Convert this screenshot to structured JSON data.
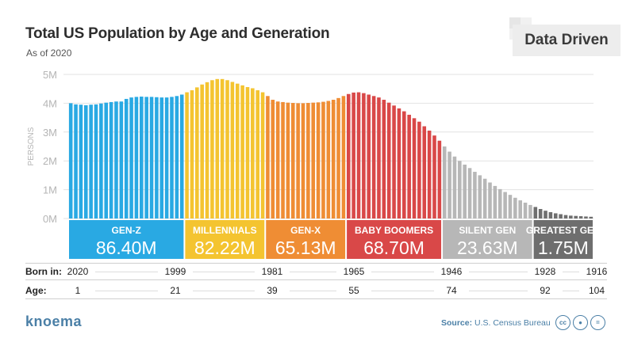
{
  "title": "Total US Population by Age and Generation",
  "subtitle": "As of 2020",
  "brand": "Data Driven",
  "footer": {
    "logo": "knoema",
    "source_label": "Source:",
    "source_value": "U.S. Census Bureau",
    "license_icons": [
      "cc-icon",
      "by-icon",
      "nd-icon"
    ]
  },
  "rows": {
    "born_label": "Born in:",
    "born_values": [
      "2020",
      "1999",
      "1981",
      "1965",
      "1946",
      "1928",
      "1916"
    ],
    "age_label": "Age:",
    "age_values": [
      "1",
      "21",
      "39",
      "55",
      "74",
      "92",
      "104"
    ]
  },
  "chart_data": {
    "type": "bar",
    "title": "Total US Population by Age and Generation",
    "subtitle": "As of 2020",
    "ylabel": "PERSONS",
    "xlabel": "Age",
    "ylim": [
      0,
      5
    ],
    "y_unit": "M",
    "yticks": [
      "0M",
      "1M",
      "2M",
      "3M",
      "4M",
      "5M"
    ],
    "ages_start": 1,
    "values": [
      4.0,
      3.96,
      3.95,
      3.93,
      3.95,
      3.96,
      3.99,
      4.02,
      4.04,
      4.06,
      4.06,
      4.15,
      4.2,
      4.22,
      4.23,
      4.22,
      4.22,
      4.21,
      4.2,
      4.2,
      4.22,
      4.25,
      4.3,
      4.38,
      4.45,
      4.55,
      4.65,
      4.73,
      4.8,
      4.84,
      4.84,
      4.8,
      4.74,
      4.68,
      4.62,
      4.56,
      4.52,
      4.45,
      4.38,
      4.25,
      4.12,
      4.06,
      4.04,
      4.02,
      4.01,
      4.0,
      4.0,
      4.01,
      4.02,
      4.03,
      4.05,
      4.08,
      4.12,
      4.18,
      4.25,
      4.32,
      4.37,
      4.38,
      4.35,
      4.3,
      4.25,
      4.2,
      4.12,
      4.02,
      3.92,
      3.82,
      3.72,
      3.6,
      3.48,
      3.36,
      3.2,
      3.05,
      2.88,
      2.7,
      2.5,
      2.32,
      2.15,
      2.0,
      1.87,
      1.75,
      1.62,
      1.5,
      1.38,
      1.25,
      1.13,
      1.02,
      0.92,
      0.82,
      0.72,
      0.63,
      0.55,
      0.47,
      0.4,
      0.33,
      0.27,
      0.22,
      0.18,
      0.15,
      0.12,
      0.1,
      0.09,
      0.08,
      0.07,
      0.06
    ],
    "generations": [
      {
        "name": "GEN-Z",
        "total": "86.40M",
        "color": "#29a9e3",
        "start_age": 1,
        "end_age": 23
      },
      {
        "name": "MILLENNIALS",
        "total": "82.22M",
        "color": "#f4c430",
        "start_age": 24,
        "end_age": 39
      },
      {
        "name": "GEN-X",
        "total": "65.13M",
        "color": "#ef8d34",
        "start_age": 40,
        "end_age": 55
      },
      {
        "name": "BABY BOOMERS",
        "total": "68.70M",
        "color": "#d94848",
        "start_age": 56,
        "end_age": 74
      },
      {
        "name": "SILENT GEN",
        "total": "23.63M",
        "color": "#b7b7b7",
        "start_age": 75,
        "end_age": 92
      },
      {
        "name": "GREATEST GEN",
        "total": "1.75M",
        "color": "#6e6e6e",
        "start_age": 93,
        "end_age": 104
      }
    ]
  }
}
